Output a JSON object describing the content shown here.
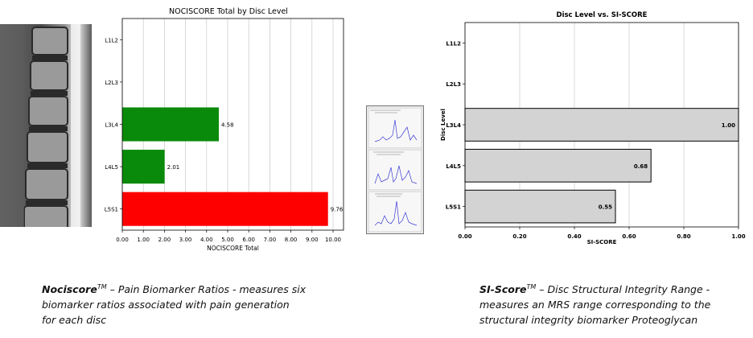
{
  "spectra_panel": {
    "panels": 3,
    "line_color": "#3b3bd6"
  },
  "captions": {
    "left": {
      "term": "Nociscore",
      "tm": "TM",
      "line1": " – Pain Biomarker Ratios - measures six",
      "line2": "biomarker ratios associated with pain generation",
      "line3": "for each disc"
    },
    "right": {
      "term": "SI-Score",
      "tm": "TM",
      "line1": " – Disc Structural Integrity Range -",
      "line2": "measures an MRS range corresponding to the",
      "line3": "structural integrity biomarker Proteoglycan"
    }
  },
  "chart_data": [
    {
      "type": "bar",
      "orientation": "horizontal",
      "title": "NOCISCORE Total by Disc Level",
      "xlabel": "NOCISCORE Total",
      "ylabel": "",
      "xlim": [
        0,
        10
      ],
      "x_ticks": [
        "0.00",
        "1.00",
        "2.00",
        "3.00",
        "4.00",
        "5.00",
        "6.00",
        "7.00",
        "8.00",
        "9.00",
        "10.00"
      ],
      "categories": [
        "L1L2",
        "L2L3",
        "L3L4",
        "L4L5",
        "L5S1"
      ],
      "values": [
        null,
        null,
        4.58,
        2.01,
        9.76
      ],
      "value_labels": [
        "",
        "",
        "4.58",
        "2.01",
        "9.76"
      ],
      "colors": [
        "",
        "",
        "#0a8a0a",
        "#0a8a0a",
        "#ff0000"
      ],
      "grid": "vertical"
    },
    {
      "type": "bar",
      "orientation": "horizontal",
      "title": "Disc Level vs. SI-SCORE",
      "xlabel": "SI-SCORE",
      "ylabel": "Disc Level",
      "xlim": [
        0,
        1
      ],
      "x_ticks": [
        "0.00",
        "0.20",
        "0.40",
        "0.60",
        "0.80",
        "1.00"
      ],
      "categories": [
        "L1L2",
        "L2L3",
        "L3L4",
        "L4L5",
        "L5S1"
      ],
      "values": [
        null,
        null,
        1.0,
        0.68,
        0.55
      ],
      "value_labels": [
        "",
        "",
        "1.00",
        "0.68",
        "0.55"
      ],
      "colors": [
        "",
        "",
        "#d3d3d3",
        "#d3d3d3",
        "#d3d3d3"
      ],
      "grid": "vertical"
    }
  ]
}
